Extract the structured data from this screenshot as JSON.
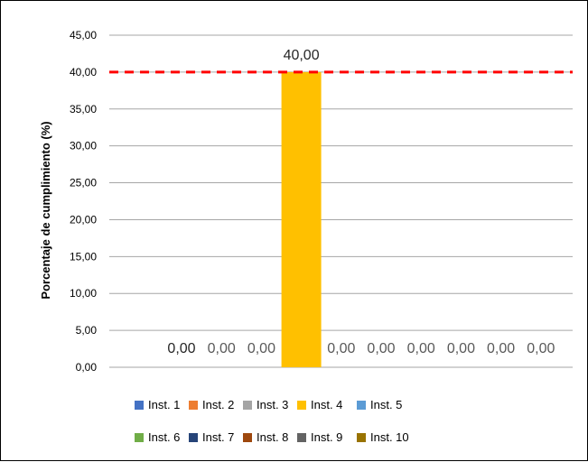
{
  "chart_data": {
    "type": "bar",
    "title": "",
    "xlabel": "",
    "ylabel": "Porcentaje de cumplimiento (%)",
    "ylim": [
      0,
      45
    ],
    "yticks": [
      "0,00",
      "5,00",
      "10,00",
      "15,00",
      "20,00",
      "25,00",
      "30,00",
      "35,00",
      "40,00",
      "45,00"
    ],
    "grid": true,
    "legend_position": "bottom",
    "reference_line": {
      "value": 40,
      "style": "dashed",
      "color": "#ff0000"
    },
    "series": [
      {
        "name": "Inst. 1",
        "value": 0,
        "label": "0,00",
        "color": "#4472c4"
      },
      {
        "name": "Inst. 2",
        "value": 0,
        "label": "0,00",
        "color": "#ed7d31"
      },
      {
        "name": "Inst. 3",
        "value": 0,
        "label": "0,00",
        "color": "#a5a5a5"
      },
      {
        "name": "Inst. 4",
        "value": 40,
        "label": "40,00",
        "color": "#ffc000"
      },
      {
        "name": "Inst. 5",
        "value": 0,
        "label": "0,00",
        "color": "#5b9bd5"
      },
      {
        "name": "Inst. 6",
        "value": 0,
        "label": "0,00",
        "color": "#70ad47"
      },
      {
        "name": "Inst. 7",
        "value": 0,
        "label": "0,00",
        "color": "#264478"
      },
      {
        "name": "Inst. 8",
        "value": 0,
        "label": "0,00",
        "color": "#9e480e"
      },
      {
        "name": "Inst. 9",
        "value": 0,
        "label": "0,00",
        "color": "#636363"
      },
      {
        "name": "Inst. 10",
        "value": 0,
        "label": "0,00",
        "color": "#997300"
      }
    ]
  }
}
